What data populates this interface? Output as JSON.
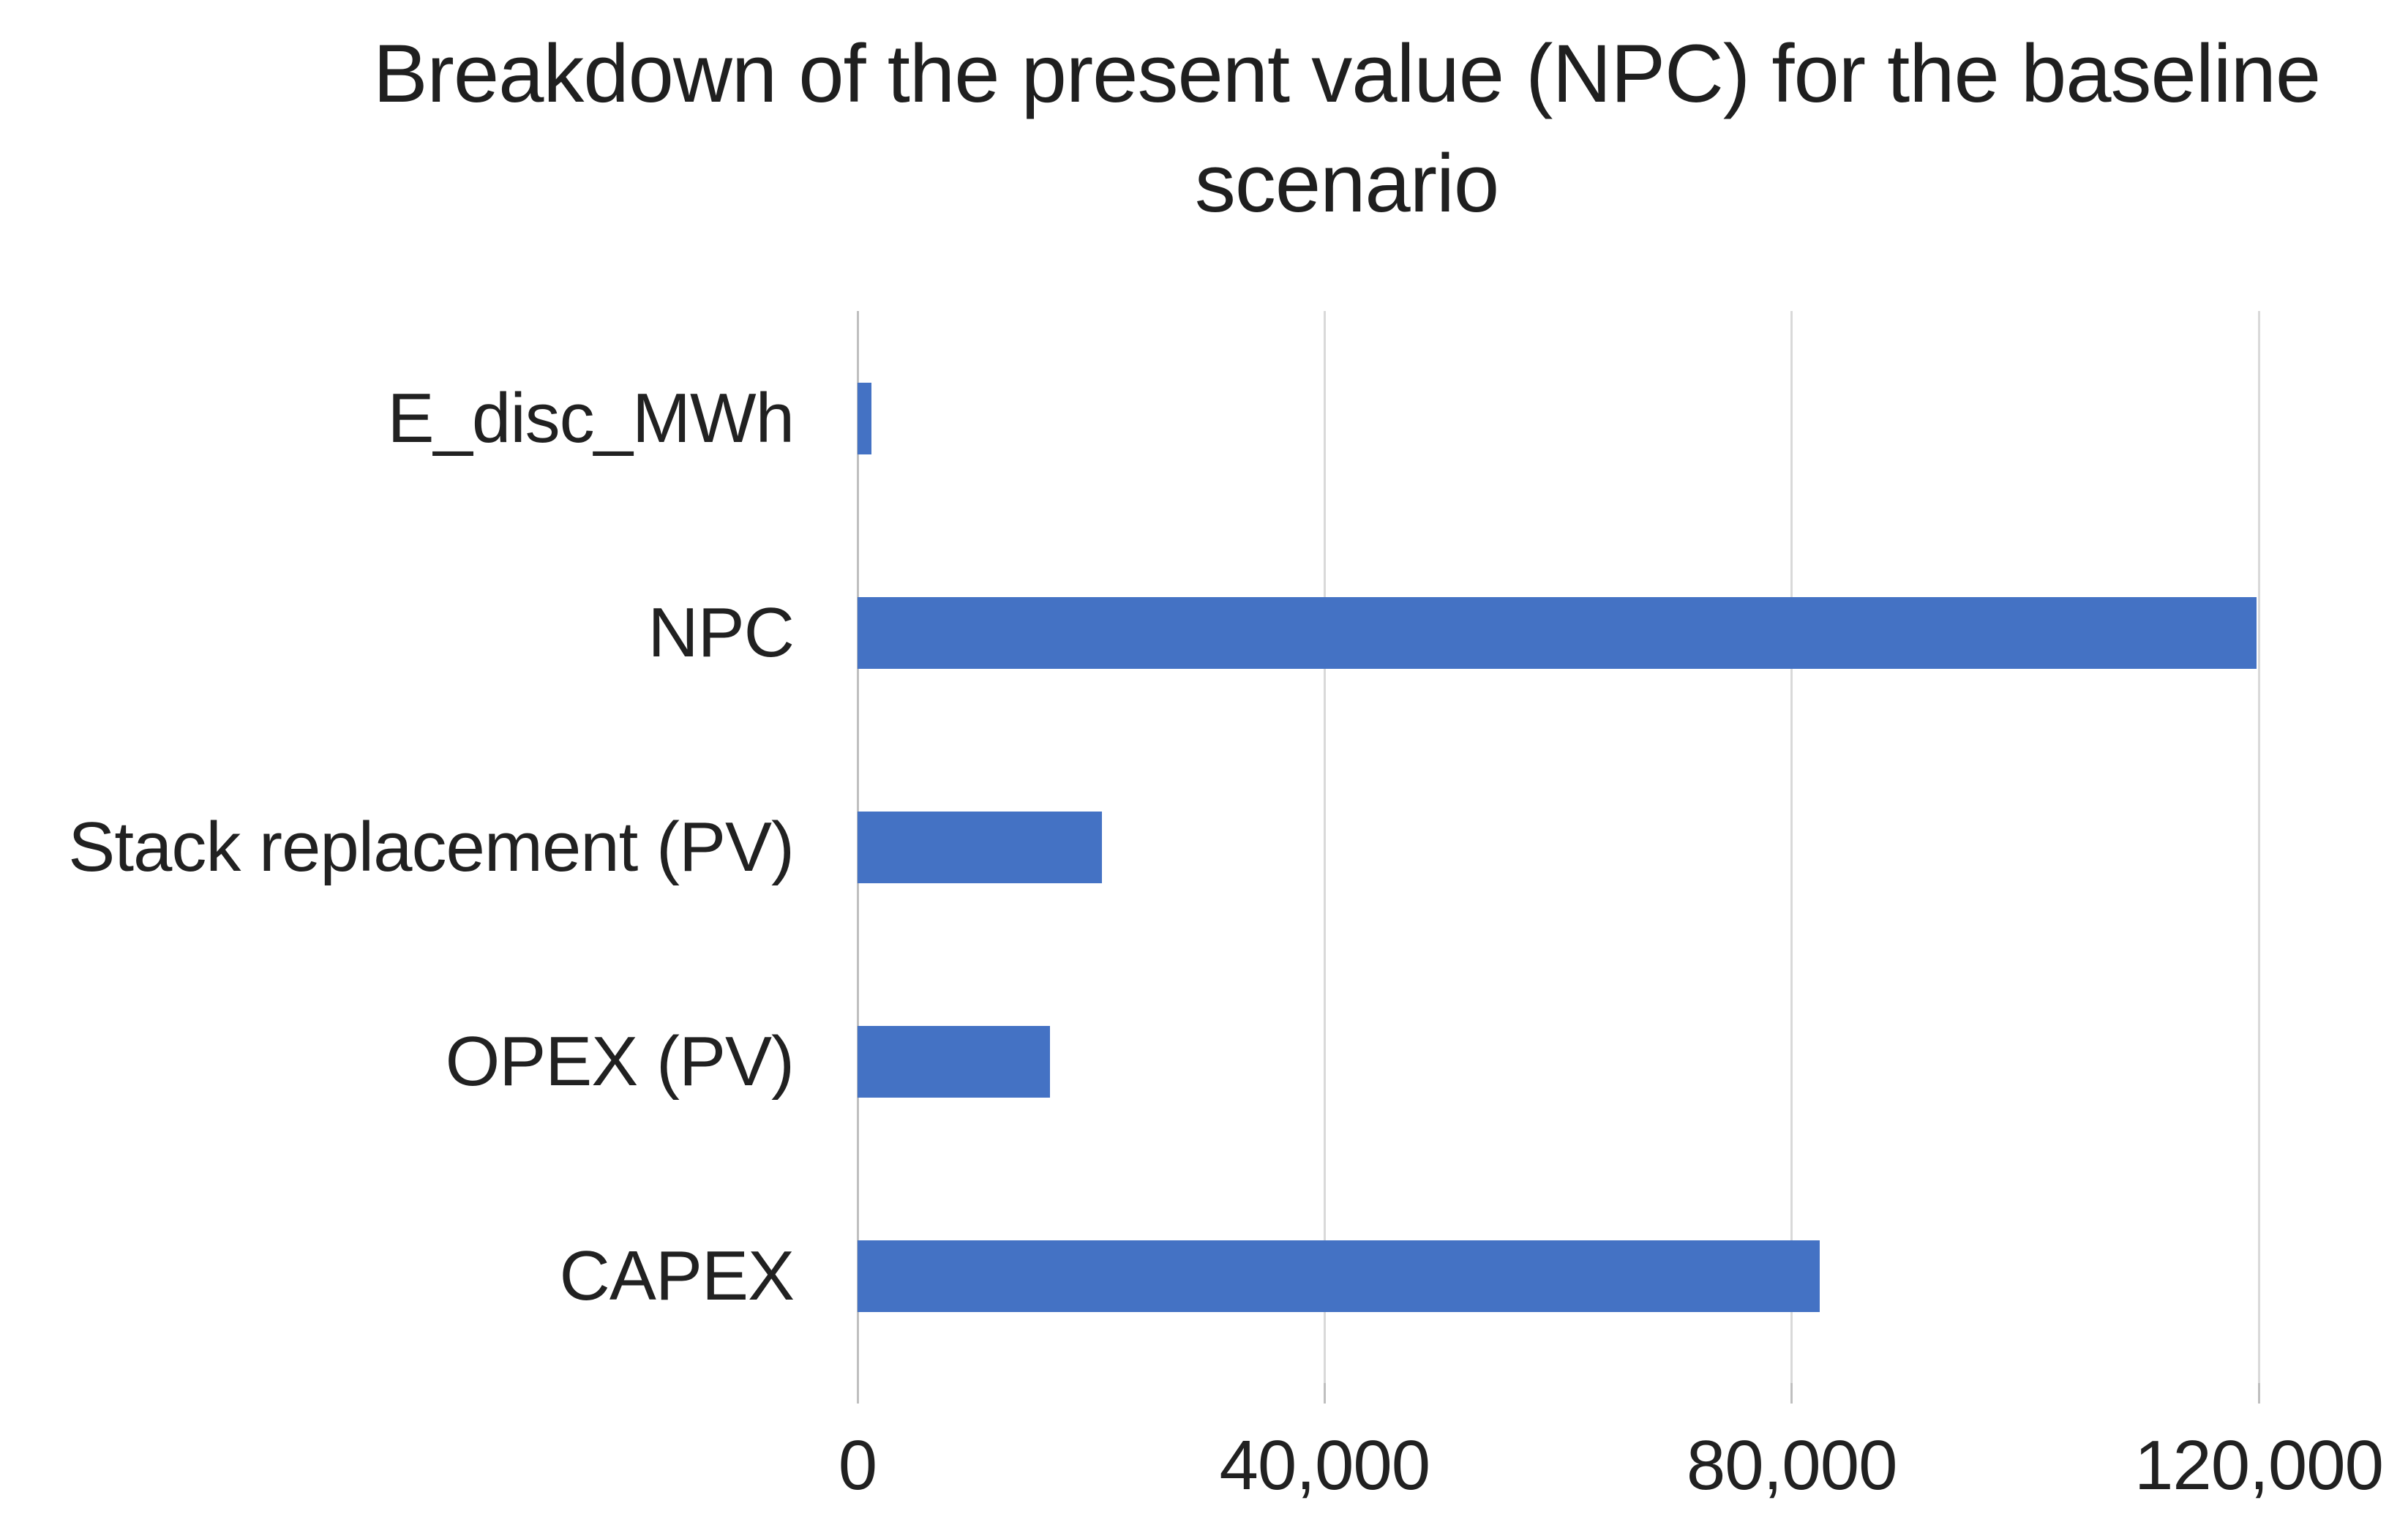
{
  "chart": {
    "title_lines": [
      "Breakdown of the present value (NPC) for the baseline",
      "scenario"
    ]
  },
  "chart_data": {
    "type": "bar",
    "orientation": "horizontal",
    "title": "Breakdown of the present value (NPC) for the baseline scenario",
    "categories": [
      "E_disc_MWh",
      "NPC",
      "Stack replacement (PV)",
      "OPEX (PV)",
      "CAPEX"
    ],
    "values": [
      1200,
      119800,
      20900,
      16500,
      82400
    ],
    "xlabel": "",
    "ylabel": "",
    "xlim": [
      0,
      120000
    ],
    "xticks": [
      0,
      40000,
      80000,
      120000
    ],
    "xtick_labels": [
      "0",
      "40,000",
      "80,000",
      "120,000"
    ],
    "grid": true,
    "legend": false,
    "bar_color": "#4472c4",
    "gridline_color": "#d9d9d9",
    "axis_line_color": "#bfbfbf",
    "text_color": "#212121",
    "title_color": "#1f1f1f",
    "background_color": "#ffffff"
  }
}
